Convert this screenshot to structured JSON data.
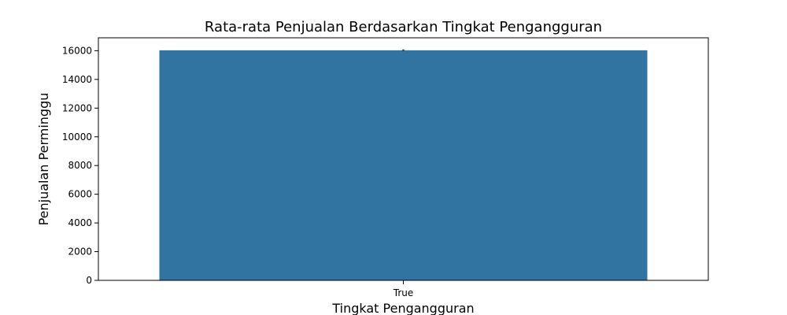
{
  "chart_data": {
    "type": "bar",
    "title": "Rata-rata Penjualan Berdasarkan Tingkat Pengangguran",
    "xlabel": "Tingkat Pengangguran",
    "ylabel": "Penjualan Perminggu",
    "categories": [
      "True"
    ],
    "values": [
      16030
    ],
    "error": [
      [
        15980,
        16090
      ]
    ],
    "ylim": [
      0,
      16900
    ],
    "yticks": [
      0,
      2000,
      4000,
      6000,
      8000,
      10000,
      12000,
      14000,
      16000
    ],
    "grid": false,
    "bar_color": "#3274a1",
    "error_color": "#424242"
  }
}
